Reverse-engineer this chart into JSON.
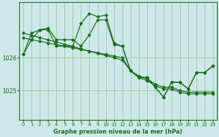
{
  "title": "Graphe pression niveau de la mer (hPa)",
  "bg_color": "#cce8e8",
  "grid_color": "#90c090",
  "line_color": "#1a6b1a",
  "xlim": [
    -0.5,
    23.5
  ],
  "ylim": [
    1024.1,
    1027.7
  ],
  "yticks": [
    1025,
    1026
  ],
  "xticks": [
    0,
    1,
    2,
    3,
    4,
    5,
    6,
    7,
    8,
    9,
    10,
    11,
    12,
    13,
    14,
    15,
    16,
    17,
    18,
    19,
    20,
    21,
    22,
    23
  ],
  "series1": [
    1026.1,
    1026.55,
    1026.85,
    1026.85,
    1026.35,
    1026.35,
    1026.35,
    1027.05,
    1027.35,
    1027.25,
    1027.3,
    1026.45,
    1026.35,
    1025.6,
    1025.4,
    1025.4,
    1025.1,
    1024.8,
    1025.25,
    1025.25,
    1025.05,
    1025.55,
    1025.55,
    1025.75
  ],
  "series2": [
    1026.1,
    1026.75,
    1026.85,
    1026.9,
    1026.55,
    1026.55,
    1026.55,
    1026.35,
    1026.7,
    1027.15,
    1027.15,
    1026.4,
    1026.35,
    1025.6,
    1025.4,
    1025.4,
    1025.1,
    1024.8,
    1025.25,
    1025.25,
    1025.05,
    1025.55,
    1025.55,
    1025.75
  ],
  "series3_straight": [
    1026.75,
    1026.68,
    1026.61,
    1026.54,
    1026.48,
    1026.41,
    1026.34,
    1026.27,
    1026.2,
    1026.13,
    1026.07,
    1026.0,
    1025.93,
    1025.6,
    1025.45,
    1025.35,
    1025.2,
    1025.1,
    1025.1,
    1025.0,
    1024.95,
    1024.95,
    1024.95,
    1024.95
  ],
  "series4_straight": [
    1026.6,
    1026.55,
    1026.5,
    1026.45,
    1026.4,
    1026.35,
    1026.3,
    1026.25,
    1026.2,
    1026.15,
    1026.1,
    1026.05,
    1026.0,
    1025.6,
    1025.4,
    1025.3,
    1025.15,
    1025.05,
    1025.05,
    1024.95,
    1024.9,
    1024.9,
    1024.9,
    1024.9
  ]
}
